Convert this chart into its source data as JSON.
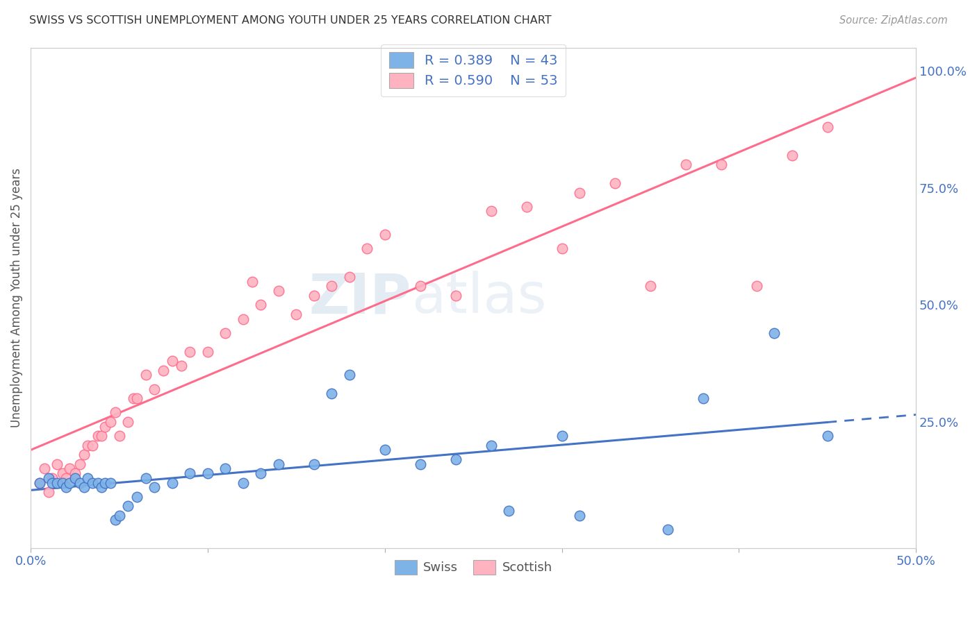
{
  "title": "SWISS VS SCOTTISH UNEMPLOYMENT AMONG YOUTH UNDER 25 YEARS CORRELATION CHART",
  "source": "Source: ZipAtlas.com",
  "ylabel": "Unemployment Among Youth under 25 years",
  "xlim": [
    0.0,
    0.5
  ],
  "ylim": [
    -0.02,
    1.05
  ],
  "swiss_color": "#7EB3E8",
  "scottish_color": "#FFB3C1",
  "swiss_line_color": "#4472C4",
  "scottish_line_color": "#FF6B8A",
  "swiss_R": 0.389,
  "swiss_N": 43,
  "scottish_R": 0.59,
  "scottish_N": 53,
  "background_color": "#FFFFFF",
  "grid_color": "#CCCCCC",
  "watermark_zip": "ZIP",
  "watermark_atlas": "atlas",
  "swiss_scatter_x": [
    0.005,
    0.01,
    0.012,
    0.015,
    0.018,
    0.02,
    0.022,
    0.025,
    0.028,
    0.03,
    0.032,
    0.035,
    0.038,
    0.04,
    0.042,
    0.045,
    0.048,
    0.05,
    0.055,
    0.06,
    0.065,
    0.07,
    0.08,
    0.09,
    0.1,
    0.11,
    0.12,
    0.13,
    0.14,
    0.16,
    0.17,
    0.18,
    0.2,
    0.22,
    0.24,
    0.26,
    0.27,
    0.3,
    0.31,
    0.36,
    0.38,
    0.42,
    0.45
  ],
  "swiss_scatter_y": [
    0.12,
    0.13,
    0.12,
    0.12,
    0.12,
    0.11,
    0.12,
    0.13,
    0.12,
    0.11,
    0.13,
    0.12,
    0.12,
    0.11,
    0.12,
    0.12,
    0.04,
    0.05,
    0.07,
    0.09,
    0.13,
    0.11,
    0.12,
    0.14,
    0.14,
    0.15,
    0.12,
    0.14,
    0.16,
    0.16,
    0.31,
    0.35,
    0.19,
    0.16,
    0.17,
    0.2,
    0.06,
    0.22,
    0.05,
    0.02,
    0.3,
    0.44,
    0.22
  ],
  "scottish_scatter_x": [
    0.005,
    0.008,
    0.01,
    0.012,
    0.015,
    0.018,
    0.02,
    0.022,
    0.025,
    0.028,
    0.03,
    0.032,
    0.035,
    0.038,
    0.04,
    0.042,
    0.045,
    0.048,
    0.05,
    0.055,
    0.058,
    0.06,
    0.065,
    0.07,
    0.075,
    0.08,
    0.085,
    0.09,
    0.1,
    0.11,
    0.12,
    0.125,
    0.13,
    0.14,
    0.15,
    0.16,
    0.17,
    0.18,
    0.19,
    0.2,
    0.22,
    0.24,
    0.26,
    0.28,
    0.3,
    0.31,
    0.33,
    0.35,
    0.37,
    0.39,
    0.41,
    0.43,
    0.45
  ],
  "scottish_scatter_y": [
    0.12,
    0.15,
    0.1,
    0.13,
    0.16,
    0.14,
    0.13,
    0.15,
    0.14,
    0.16,
    0.18,
    0.2,
    0.2,
    0.22,
    0.22,
    0.24,
    0.25,
    0.27,
    0.22,
    0.25,
    0.3,
    0.3,
    0.35,
    0.32,
    0.36,
    0.38,
    0.37,
    0.4,
    0.4,
    0.44,
    0.47,
    0.55,
    0.5,
    0.53,
    0.48,
    0.52,
    0.54,
    0.56,
    0.62,
    0.65,
    0.54,
    0.52,
    0.7,
    0.71,
    0.62,
    0.74,
    0.76,
    0.54,
    0.8,
    0.8,
    0.54,
    0.82,
    0.88
  ]
}
